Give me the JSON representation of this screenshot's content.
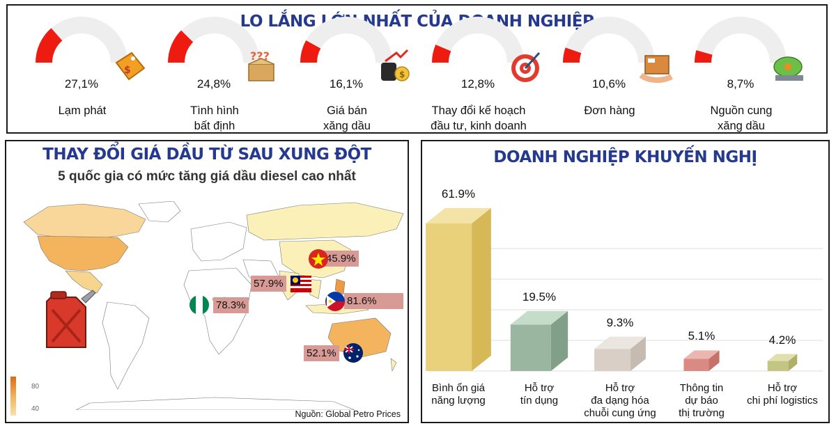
{
  "top": {
    "title": "LO LẮNG LỚN NHẤT CỦA DOANH NGHIỆP",
    "chart_data": {
      "type": "gauge",
      "items": [
        {
          "label": "Lạm phát",
          "label2": "",
          "value": 27.1,
          "display": "27,1%",
          "icon": "price-tag-icon"
        },
        {
          "label": "Tình hình",
          "label2": "bất định",
          "value": 24.8,
          "display": "24,8%",
          "icon": "question-box-icon"
        },
        {
          "label": "Giá bán",
          "label2": "xăng dầu",
          "value": 16.1,
          "display": "16,1%",
          "icon": "oil-price-icon"
        },
        {
          "label": "Thay đổi kế hoạch",
          "label2": "đầu tư, kinh doanh",
          "value": 12.8,
          "display": "12,8%",
          "icon": "target-icon"
        },
        {
          "label": "Đơn hàng",
          "label2": "",
          "value": 10.6,
          "display": "10,6%",
          "icon": "package-icon"
        },
        {
          "label": "Nguồn cung",
          "label2": "xăng dầu",
          "value": 8.7,
          "display": "8,7%",
          "icon": "fuel-tank-icon"
        }
      ],
      "max": 100,
      "colors": {
        "filled": "#ee1c10",
        "empty": "#eeeeee"
      }
    }
  },
  "map": {
    "title": "THAY ĐỔI GIÁ DẦU TỪ SAU XUNG ĐỘT",
    "subtitle": "5 quốc gia có mức tăng giá dầu diesel cao nhất",
    "source": "Nguồn: Global Petro Prices",
    "legend_ticks": [
      "80",
      "40"
    ],
    "chart_data": {
      "type": "map",
      "countries": [
        {
          "name": "Vietnam",
          "value": 45.9,
          "display": "45.9%",
          "flag": "vietnam-flag-icon"
        },
        {
          "name": "Malaysia",
          "value": 57.9,
          "display": "57.9%",
          "flag": "malaysia-flag-icon"
        },
        {
          "name": "Philippines",
          "value": 81.6,
          "display": "81.6%",
          "flag": "philippines-flag-icon"
        },
        {
          "name": "Nigeria",
          "value": 78.3,
          "display": "78.3%",
          "flag": "nigeria-flag-icon"
        },
        {
          "name": "Australia",
          "value": 52.1,
          "display": "52.1%",
          "flag": "australia-flag-icon"
        }
      ]
    }
  },
  "rec": {
    "title": "DOANH NGHIỆP KHUYẾN NGHỊ",
    "chart_data": {
      "type": "bar",
      "categories": [
        [
          "Bình ổn giá",
          "năng lượng"
        ],
        [
          "Hỗ trợ",
          "tín dụng"
        ],
        [
          "Hỗ trợ",
          "đa dạng hóa",
          "chuỗi cung ứng"
        ],
        [
          "Thông tin",
          "dự báo",
          "thị trường"
        ],
        [
          "Hỗ trợ",
          "chi phí logistics"
        ]
      ],
      "values": [
        61.9,
        19.5,
        9.3,
        5.1,
        4.2
      ],
      "labels": [
        "61.9%",
        "19.5%",
        "9.3%",
        "5.1%",
        "4.2%"
      ],
      "grid": true,
      "colors": [
        {
          "front": "#e9d07a",
          "side": "#d6b956",
          "top": "#f4e3a6"
        },
        {
          "front": "#9ab6a0",
          "side": "#82a089",
          "top": "#c6dccb"
        },
        {
          "front": "#d9cfc6",
          "side": "#c6bbb1",
          "top": "#ece6e0"
        },
        {
          "front": "#d98a82",
          "side": "#c6716a",
          "top": "#ebb6b0"
        },
        {
          "front": "#c3c582",
          "side": "#aeb068",
          "top": "#dfe0ad"
        }
      ]
    }
  }
}
